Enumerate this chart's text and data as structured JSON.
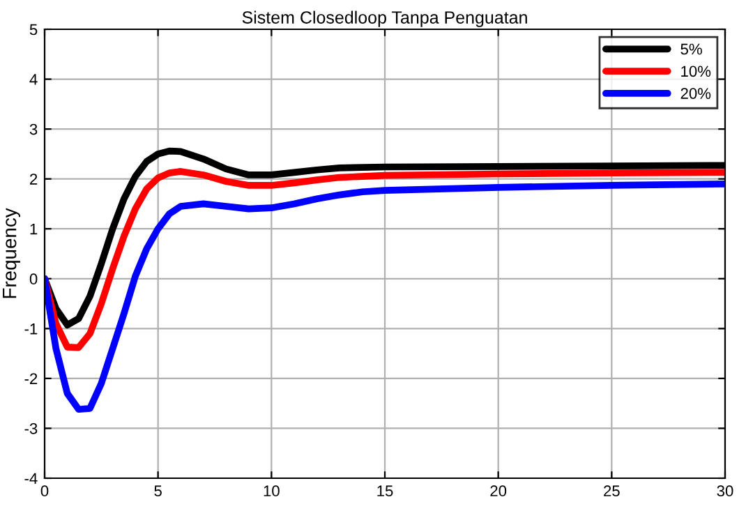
{
  "chart_data": {
    "type": "line",
    "title": "Sistem Closedloop Tanpa Penguatan",
    "ylabel": "Frequency",
    "xlim": [
      0,
      30
    ],
    "xticks": [
      0,
      5,
      10,
      15,
      20,
      25,
      30
    ],
    "ylim": [
      -4,
      5
    ],
    "yticks": [
      -4,
      -3,
      -2,
      -1,
      0,
      1,
      2,
      3,
      4,
      5
    ],
    "grid": true,
    "legend": "top right",
    "line_style": "solid",
    "series": [
      {
        "name": "5%",
        "color": "#000000",
        "x": [
          0,
          0.5,
          1,
          1.5,
          2,
          2.5,
          3,
          3.5,
          4,
          4.5,
          5,
          5.5,
          6,
          7,
          8,
          9,
          10,
          11,
          12,
          13,
          15,
          20,
          25,
          30
        ],
        "values": [
          0,
          -0.6,
          -0.93,
          -0.8,
          -0.35,
          0.3,
          1.0,
          1.6,
          2.05,
          2.35,
          2.5,
          2.56,
          2.55,
          2.4,
          2.2,
          2.08,
          2.08,
          2.13,
          2.18,
          2.22,
          2.24,
          2.25,
          2.26,
          2.27
        ]
      },
      {
        "name": "10%",
        "color": "#ff0000",
        "x": [
          0,
          0.5,
          1,
          1.5,
          2,
          2.5,
          3,
          3.5,
          4,
          4.5,
          5,
          5.5,
          6,
          7,
          8,
          9,
          10,
          11,
          12,
          13,
          15,
          20,
          25,
          30
        ],
        "values": [
          0,
          -0.9,
          -1.37,
          -1.38,
          -1.1,
          -0.5,
          0.2,
          0.85,
          1.4,
          1.8,
          2.02,
          2.12,
          2.15,
          2.08,
          1.95,
          1.87,
          1.87,
          1.92,
          1.98,
          2.03,
          2.07,
          2.1,
          2.12,
          2.13
        ]
      },
      {
        "name": "20%",
        "color": "#0000ff",
        "x": [
          0,
          0.5,
          1,
          1.5,
          2,
          2.5,
          3,
          3.5,
          4,
          4.5,
          5,
          5.5,
          6,
          7,
          8,
          9,
          10,
          11,
          12,
          13,
          14,
          15,
          20,
          25,
          30
        ],
        "values": [
          0,
          -1.4,
          -2.3,
          -2.62,
          -2.6,
          -2.1,
          -1.4,
          -0.7,
          0.05,
          0.6,
          1.0,
          1.3,
          1.45,
          1.5,
          1.45,
          1.4,
          1.42,
          1.5,
          1.6,
          1.68,
          1.74,
          1.77,
          1.83,
          1.87,
          1.9
        ]
      }
    ]
  }
}
